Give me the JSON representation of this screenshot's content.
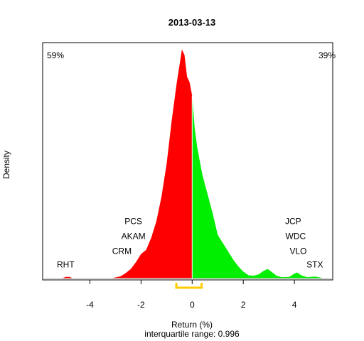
{
  "chart_data": {
    "type": "area",
    "title": "2013-03-13",
    "xlabel": "Return (%)",
    "ylabel": "Density",
    "subtitle": "interquartile range: 0.996",
    "xlim": [
      -5.85,
      5.5
    ],
    "ylim": [
      0,
      0.86
    ],
    "x_ticks": [
      -4,
      -2,
      0,
      2,
      4
    ],
    "x_tick_labels": [
      "-4",
      "-2",
      "0",
      "2",
      "4"
    ],
    "pct_negative": "59%",
    "pct_positive": "39%",
    "iqr_value": 0.996,
    "iqr_range": [
      -0.62,
      0.37
    ],
    "colors": {
      "negative": "#ff0000",
      "positive": "#00ee00",
      "iqr": "#ffcc00",
      "baseline": "#bebebe"
    },
    "density": [
      [
        -5.1,
        0.0
      ],
      [
        -4.95,
        0.006
      ],
      [
        -4.8,
        0.006
      ],
      [
        -4.65,
        0.0
      ],
      [
        -3.2,
        0.0
      ],
      [
        -3.0,
        0.004
      ],
      [
        -2.8,
        0.008
      ],
      [
        -2.6,
        0.02
      ],
      [
        -2.4,
        0.035
      ],
      [
        -2.2,
        0.06
      ],
      [
        -2.0,
        0.09
      ],
      [
        -1.8,
        0.105
      ],
      [
        -1.6,
        0.15
      ],
      [
        -1.4,
        0.21
      ],
      [
        -1.2,
        0.3
      ],
      [
        -1.0,
        0.42
      ],
      [
        -0.8,
        0.58
      ],
      [
        -0.6,
        0.72
      ],
      [
        -0.5,
        0.78
      ],
      [
        -0.4,
        0.84
      ],
      [
        -0.3,
        0.82
      ],
      [
        -0.2,
        0.74
      ],
      [
        -0.1,
        0.72
      ],
      [
        0.0,
        0.67
      ],
      [
        0.1,
        0.55
      ],
      [
        0.2,
        0.48
      ],
      [
        0.3,
        0.43
      ],
      [
        0.4,
        0.38
      ],
      [
        0.6,
        0.31
      ],
      [
        0.8,
        0.24
      ],
      [
        1.0,
        0.16
      ],
      [
        1.2,
        0.13
      ],
      [
        1.4,
        0.1
      ],
      [
        1.6,
        0.07
      ],
      [
        1.8,
        0.045
      ],
      [
        2.0,
        0.025
      ],
      [
        2.2,
        0.012
      ],
      [
        2.4,
        0.01
      ],
      [
        2.6,
        0.015
      ],
      [
        2.8,
        0.028
      ],
      [
        2.95,
        0.035
      ],
      [
        3.1,
        0.025
      ],
      [
        3.3,
        0.01
      ],
      [
        3.5,
        0.005
      ],
      [
        3.8,
        0.006
      ],
      [
        4.0,
        0.018
      ],
      [
        4.1,
        0.022
      ],
      [
        4.3,
        0.01
      ],
      [
        4.5,
        0.005
      ],
      [
        4.8,
        0.007
      ],
      [
        5.0,
        0.004
      ],
      [
        5.15,
        0.0
      ]
    ],
    "annotations": [
      {
        "label": "RHT",
        "x": -4.95,
        "y": 0.04
      },
      {
        "label": "CRM",
        "x": -2.75,
        "y": 0.09
      },
      {
        "label": "AKAM",
        "x": -2.3,
        "y": 0.145
      },
      {
        "label": "PCS",
        "x": -2.3,
        "y": 0.2
      },
      {
        "label": "STX",
        "x": 4.8,
        "y": 0.04
      },
      {
        "label": "VLO",
        "x": 4.15,
        "y": 0.09
      },
      {
        "label": "WDC",
        "x": 4.05,
        "y": 0.145
      },
      {
        "label": "JCP",
        "x": 3.95,
        "y": 0.2
      }
    ]
  }
}
